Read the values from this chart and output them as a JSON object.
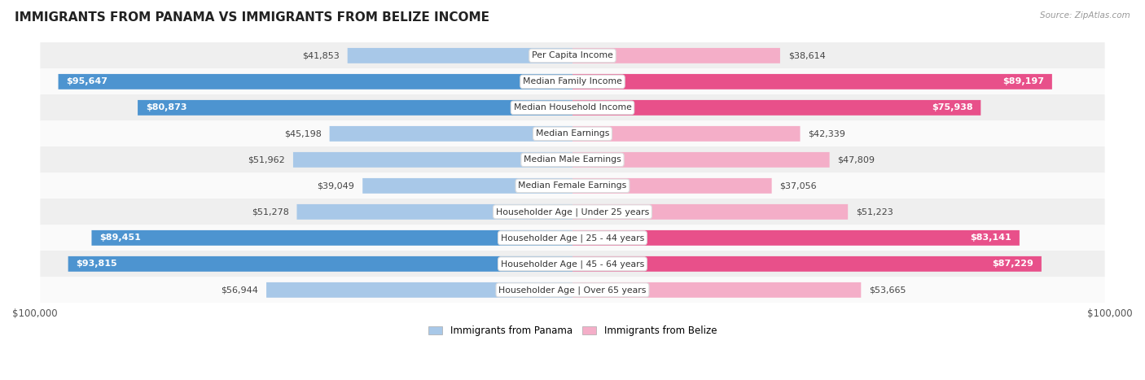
{
  "title": "IMMIGRANTS FROM PANAMA VS IMMIGRANTS FROM BELIZE INCOME",
  "source": "Source: ZipAtlas.com",
  "categories": [
    "Per Capita Income",
    "Median Family Income",
    "Median Household Income",
    "Median Earnings",
    "Median Male Earnings",
    "Median Female Earnings",
    "Householder Age | Under 25 years",
    "Householder Age | 25 - 44 years",
    "Householder Age | 45 - 64 years",
    "Householder Age | Over 65 years"
  ],
  "panama_values": [
    41853,
    95647,
    80873,
    45198,
    51962,
    39049,
    51278,
    89451,
    93815,
    56944
  ],
  "belize_values": [
    38614,
    89197,
    75938,
    42339,
    47809,
    37056,
    51223,
    83141,
    87229,
    53665
  ],
  "panama_labels": [
    "$41,853",
    "$95,647",
    "$80,873",
    "$45,198",
    "$51,962",
    "$39,049",
    "$51,278",
    "$89,451",
    "$93,815",
    "$56,944"
  ],
  "belize_labels": [
    "$38,614",
    "$89,197",
    "$75,938",
    "$42,339",
    "$47,809",
    "$37,056",
    "$51,223",
    "$83,141",
    "$87,229",
    "$53,665"
  ],
  "panama_color_light": "#a8c8e8",
  "panama_color_dark": "#4d94d0",
  "belize_color_light": "#f4aec8",
  "belize_color_dark": "#e8508a",
  "max_value": 100000,
  "background_row_even": "#efefef",
  "background_row_odd": "#fafafa",
  "bar_height": 0.58,
  "legend_panama": "Immigrants from Panama",
  "legend_belize": "Immigrants from Belize",
  "large_threshold": 65000
}
